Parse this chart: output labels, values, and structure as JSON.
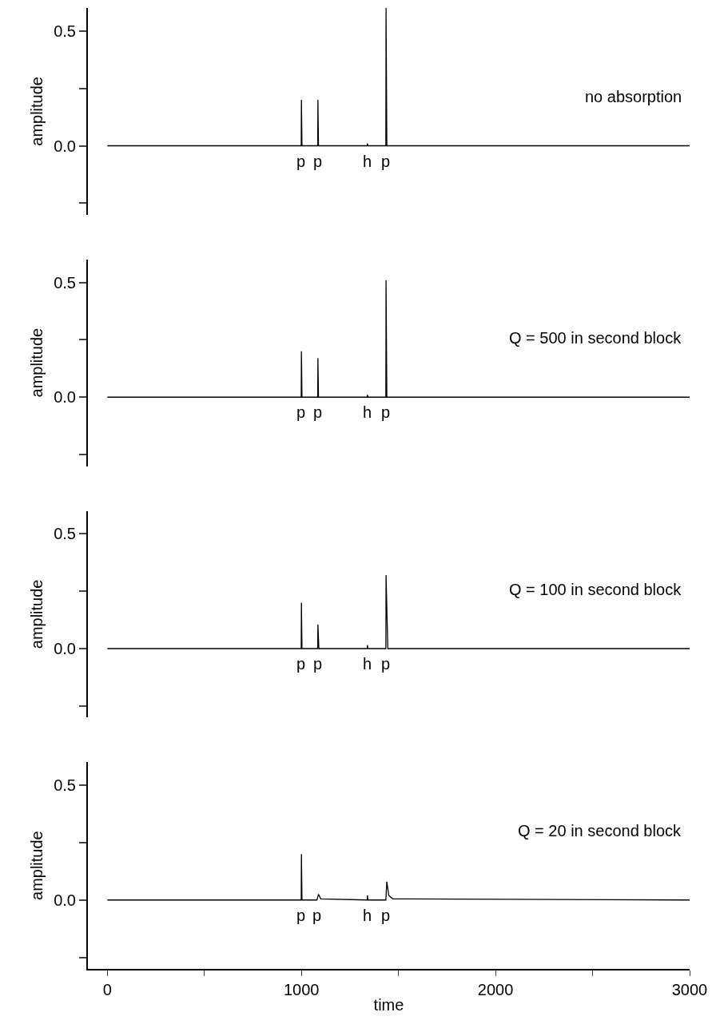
{
  "chart_data": [
    {
      "type": "line",
      "ylabel": "amplitude",
      "xlim": [
        -100,
        3000
      ],
      "ylim": [
        -0.3,
        0.6
      ],
      "tick_labels": "y",
      "yticks": [
        {
          "value": -0.25,
          "label": null
        },
        {
          "value": 0,
          "label": "0.0"
        },
        {
          "value": 0.25,
          "label": null
        },
        {
          "value": 0.5,
          "label": "0.5"
        }
      ],
      "series": [
        {
          "color": "#000000",
          "x": [
            0,
            999,
            1000,
            1003,
            1084,
            1085,
            1088,
            1339,
            1340,
            1343,
            1435,
            1436,
            1440,
            3000
          ],
          "values": [
            0,
            0,
            0.2,
            0,
            0,
            0.2,
            0,
            0,
            0.01,
            0,
            0,
            0.6,
            0,
            0
          ]
        }
      ],
      "annotations": [
        "no absorption",
        {
          "text": "p",
          "x": 999,
          "y": 0
        },
        {
          "text": "p",
          "x": 1084,
          "y": 0
        },
        {
          "text": "h",
          "x": 1339,
          "y": 0
        },
        {
          "text": "p",
          "x": 1435,
          "y": 0
        }
      ]
    },
    {
      "type": "line",
      "ylabel": "amplitude",
      "xlim": [
        -100,
        3000
      ],
      "ylim": [
        -0.3,
        0.6
      ],
      "tick_labels": "y",
      "yticks": [
        {
          "value": -0.25,
          "label": null
        },
        {
          "value": 0,
          "label": "0.0"
        },
        {
          "value": 0.25,
          "label": null
        },
        {
          "value": 0.5,
          "label": "0.5"
        }
      ],
      "series": [
        {
          "color": "#000000",
          "x": [
            0,
            999,
            1000,
            1003,
            1084,
            1085,
            1088,
            1339,
            1340,
            1343,
            1435,
            1436,
            1440,
            3000
          ],
          "values": [
            0,
            0,
            0.2,
            0,
            0,
            0.17,
            0,
            0,
            0.01,
            0,
            0,
            0.51,
            0,
            0
          ]
        }
      ],
      "annotations": [
        "Q = 500 in second block",
        {
          "text": "p",
          "x": 999,
          "y": 0
        },
        {
          "text": "p",
          "x": 1084,
          "y": 0
        },
        {
          "text": "h",
          "x": 1339,
          "y": 0
        },
        {
          "text": "p",
          "x": 1435,
          "y": 0
        }
      ]
    },
    {
      "type": "line",
      "ylabel": "amplitude",
      "xlim": [
        -100,
        3000
      ],
      "ylim": [
        -0.3,
        0.6
      ],
      "tick_labels": "y",
      "yticks": [
        {
          "value": -0.25,
          "label": null
        },
        {
          "value": 0,
          "label": "0.0"
        },
        {
          "value": 0.25,
          "label": null
        },
        {
          "value": 0.5,
          "label": "0.5"
        }
      ],
      "series": [
        {
          "color": "#000000",
          "x": [
            0,
            999,
            1000,
            1003,
            1084,
            1085,
            1090,
            1339,
            1340,
            1343,
            1435,
            1436,
            1445,
            3000
          ],
          "values": [
            0,
            0,
            0.2,
            0,
            0,
            0.105,
            0,
            0,
            0.015,
            0,
            0,
            0.32,
            0,
            0
          ]
        }
      ],
      "annotations": [
        "Q = 100 in second block",
        {
          "text": "p",
          "x": 999,
          "y": 0
        },
        {
          "text": "p",
          "x": 1084,
          "y": 0
        },
        {
          "text": "h",
          "x": 1339,
          "y": 0
        },
        {
          "text": "p",
          "x": 1435,
          "y": 0
        }
      ]
    },
    {
      "type": "line",
      "ylabel": "amplitude",
      "xlabel": "time",
      "xlim": [
        -100,
        3000
      ],
      "ylim": [
        -0.3,
        0.6
      ],
      "xticks": [
        0,
        {
          "value": 500,
          "label": null
        },
        1000,
        {
          "value": 1500,
          "label": null
        },
        2000,
        {
          "value": 2500,
          "label": null
        },
        3000
      ],
      "yticks": [
        {
          "value": -0.25,
          "label": null
        },
        {
          "value": 0,
          "label": "0.0"
        },
        {
          "value": 0.25,
          "label": null
        },
        {
          "value": 0.5,
          "label": "0.5"
        }
      ],
      "series": [
        {
          "color": "#000000",
          "x": [
            0,
            999,
            1000,
            1003,
            1080,
            1088,
            1100,
            1339,
            1340,
            1343,
            1435,
            1440,
            1450,
            1470,
            3000
          ],
          "values": [
            0,
            0,
            0.2,
            0,
            0,
            0.025,
            0.005,
            0,
            0.02,
            0,
            0,
            0.08,
            0.02,
            0.005,
            0
          ]
        }
      ],
      "annotations": [
        "Q = 20 in second block",
        {
          "text": "p",
          "x": 999,
          "y": 0
        },
        {
          "text": "p",
          "x": 1080,
          "y": 0
        },
        {
          "text": "h",
          "x": 1339,
          "y": 0
        },
        {
          "text": "p",
          "x": 1435,
          "y": 0
        }
      ]
    }
  ]
}
